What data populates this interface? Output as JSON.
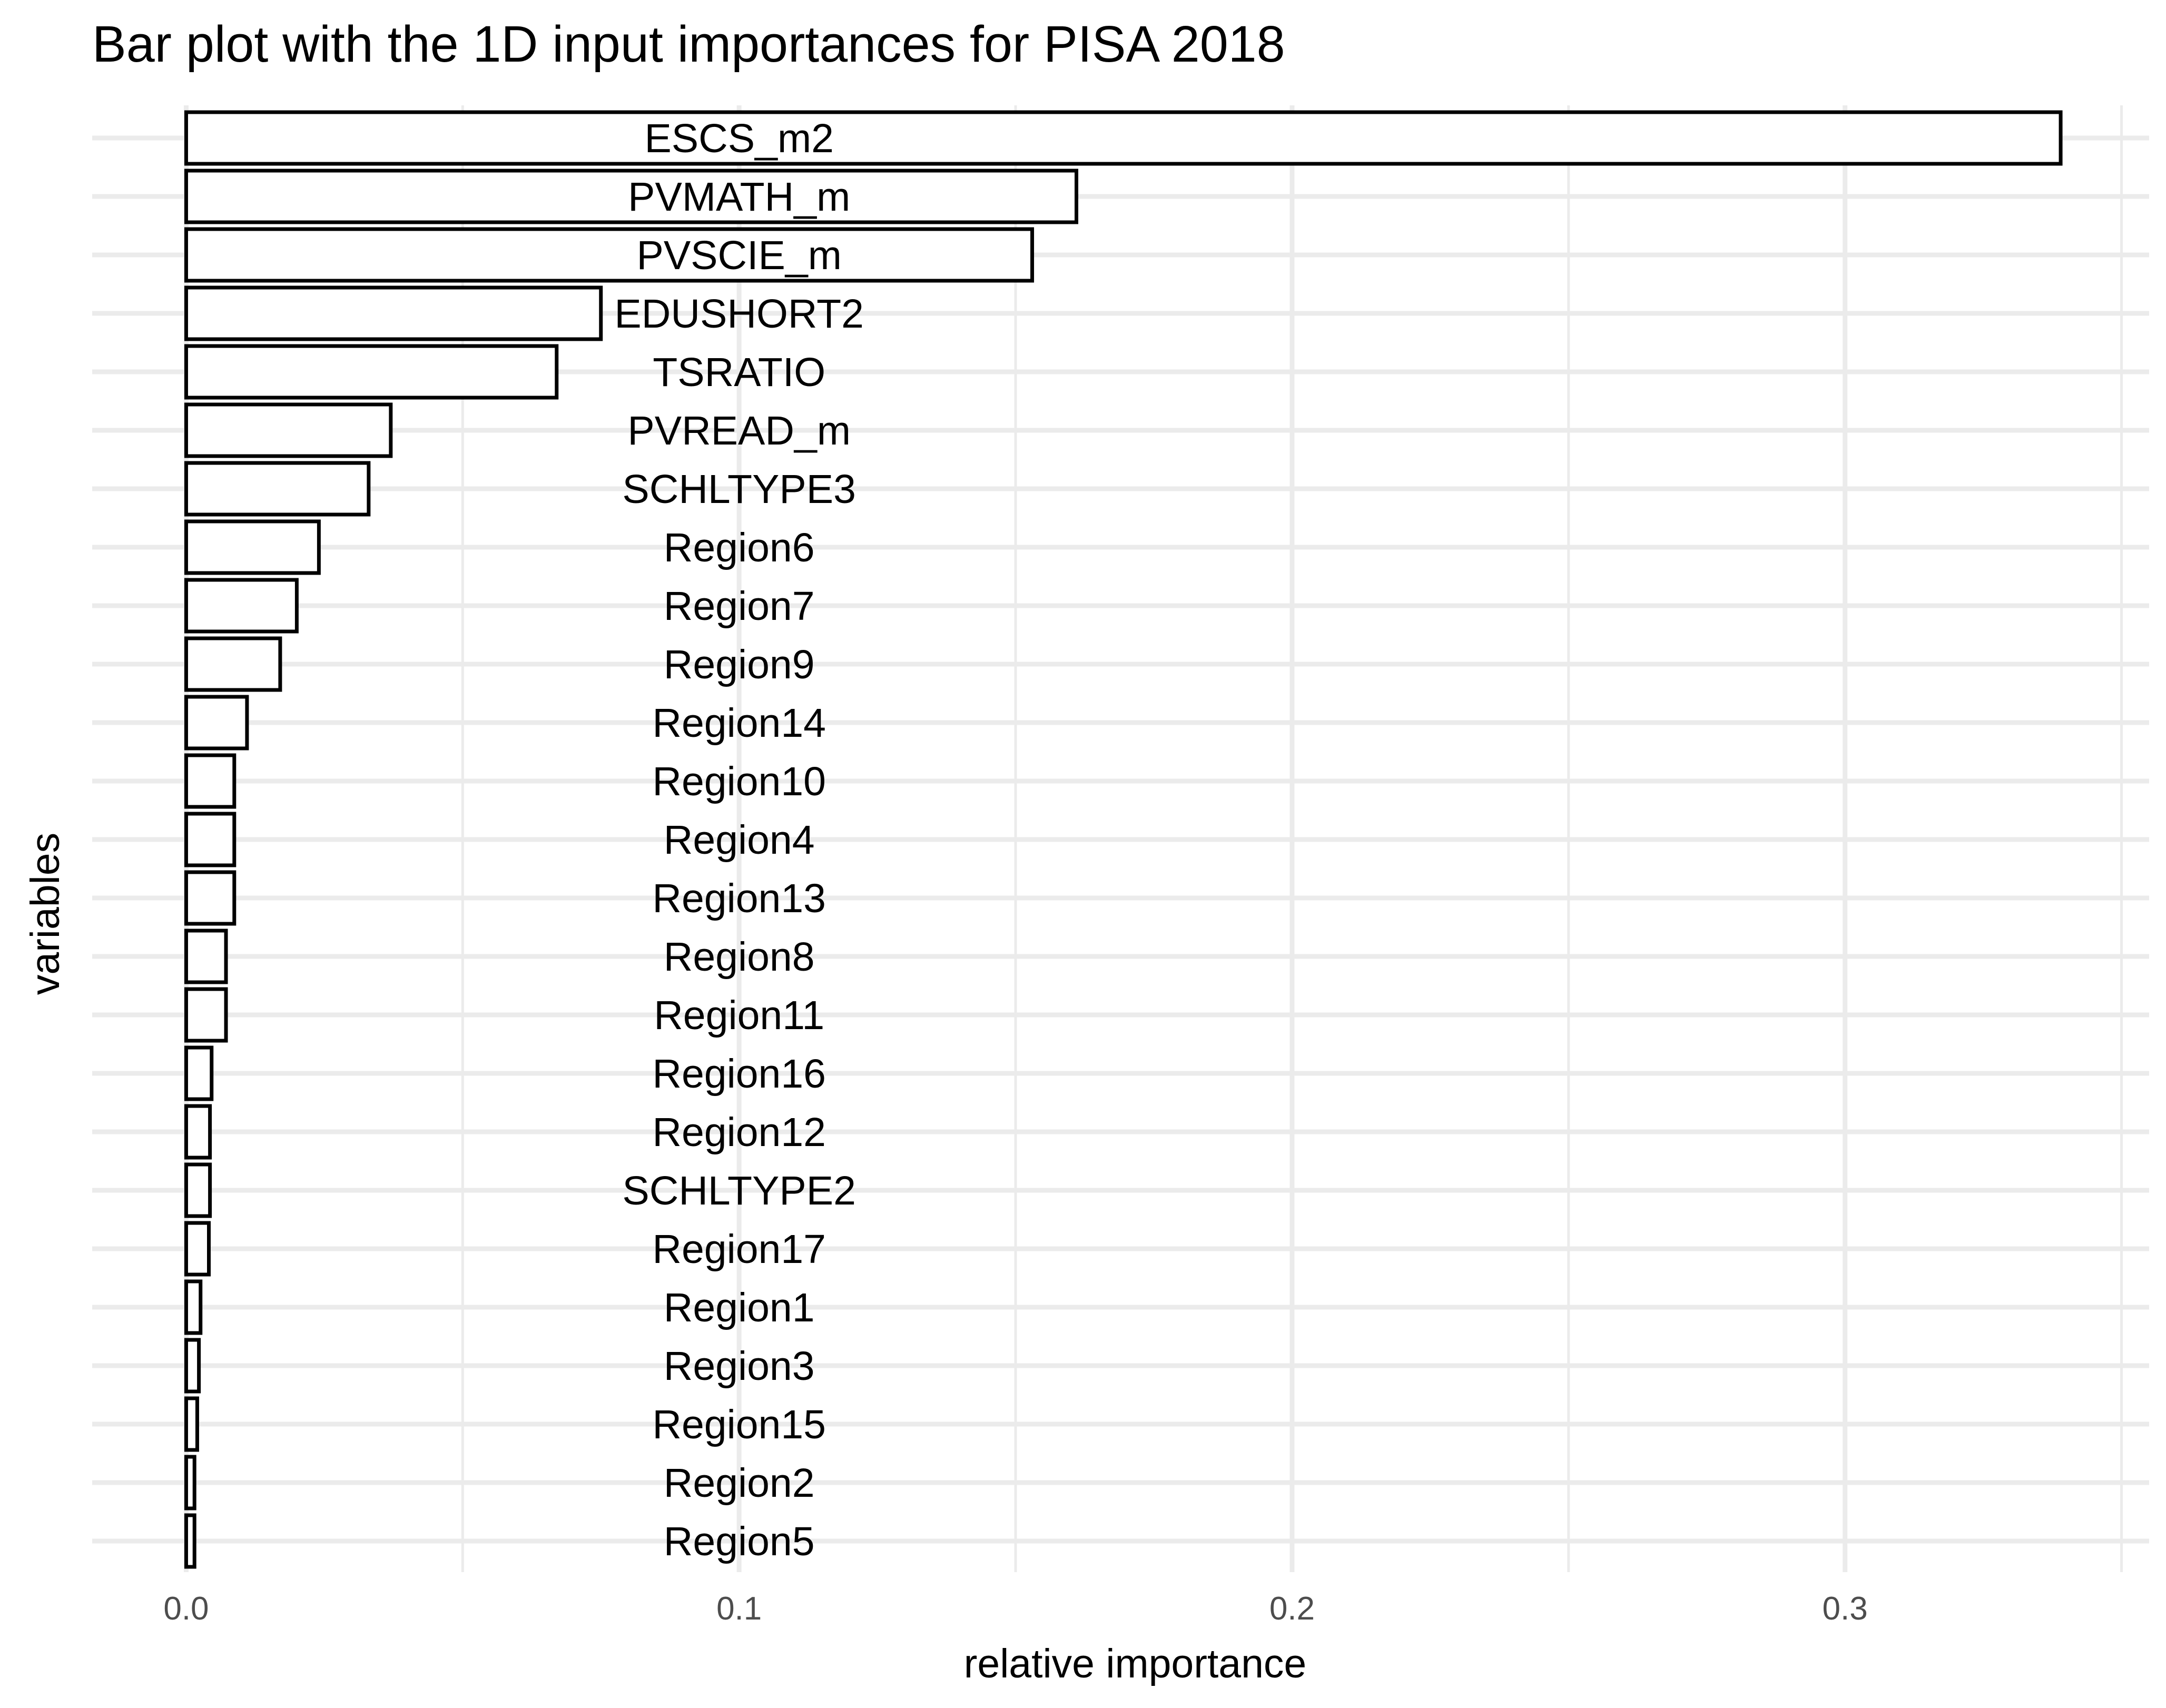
{
  "chart_data": {
    "type": "bar",
    "orientation": "horizontal",
    "title": "Bar plot with the 1D input importances for PISA 2018",
    "xlabel": "relative importance",
    "ylabel": "variables",
    "xlim": [
      -0.017,
      0.355
    ],
    "x_ticks": [
      0.0,
      0.1,
      0.2,
      0.3
    ],
    "x_tick_labels": [
      "0.0",
      "0.1",
      "0.2",
      "0.3"
    ],
    "grid": true,
    "legend": "none",
    "bar_fill": "#ffffff",
    "bar_outline": "#000000",
    "grid_color": "#ebebeb",
    "categories": [
      "ESCS_m2",
      "PVMATH_m",
      "PVSCIE_m",
      "EDUSHORT2",
      "TSRATIO",
      "PVREAD_m",
      "SCHLTYPE3",
      "Region6",
      "Region7",
      "Region9",
      "Region14",
      "Region10",
      "Region4",
      "Region13",
      "Region8",
      "Region11",
      "Region16",
      "Region12",
      "SCHLTYPE2",
      "Region17",
      "Region1",
      "Region3",
      "Region15",
      "Region2",
      "Region5"
    ],
    "values": [
      0.339,
      0.161,
      0.153,
      0.075,
      0.067,
      0.037,
      0.033,
      0.024,
      0.02,
      0.017,
      0.011,
      0.0087,
      0.0087,
      0.0087,
      0.0072,
      0.0072,
      0.0046,
      0.0043,
      0.0043,
      0.0041,
      0.0026,
      0.0023,
      0.002,
      0.0015,
      0.0015
    ]
  }
}
